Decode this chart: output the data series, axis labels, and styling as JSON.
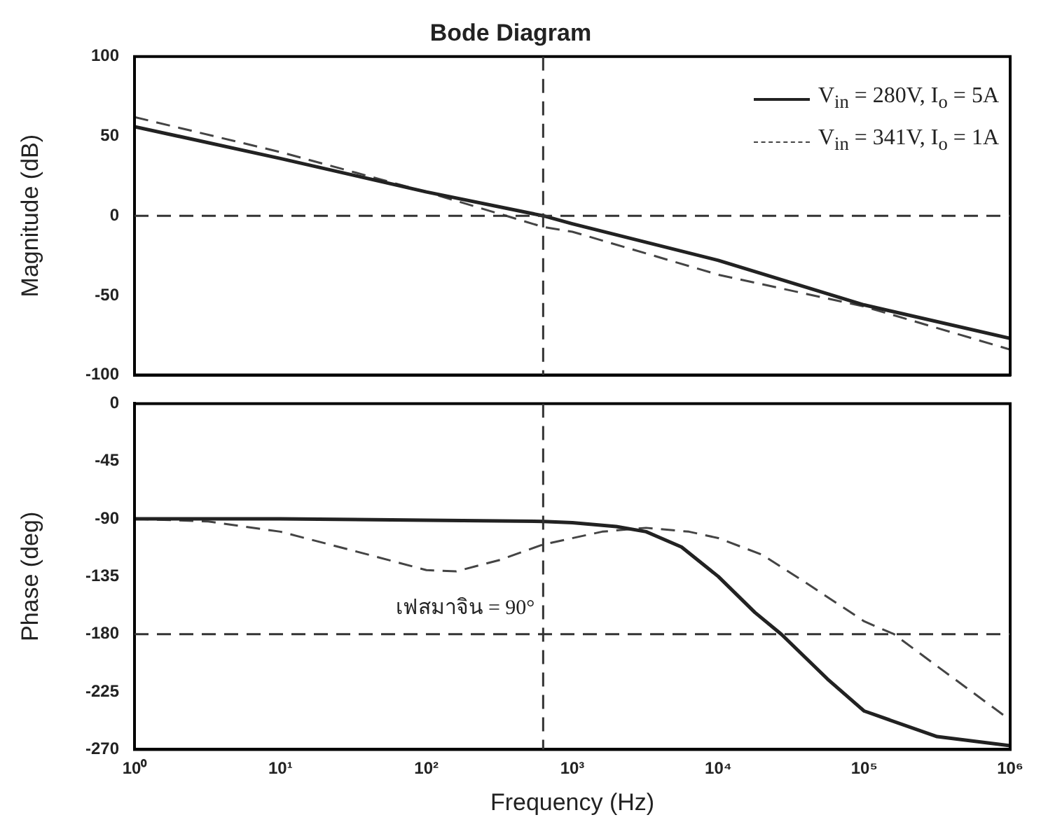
{
  "chart_data": [
    {
      "type": "line",
      "title": "Bode Diagram",
      "ylabel": "Magnitude (dB)",
      "log": "x",
      "grid": false,
      "legend": "top right",
      "tick_labels": "y",
      "marker": "none",
      "xlim": [
        1,
        1000000
      ],
      "ylim": [
        -100,
        100
      ],
      "yticks": [
        -100,
        -50,
        0,
        50,
        100
      ],
      "series": [
        {
          "name": "V$_{in}$ = 280V, I$_{o}$ = 5A",
          "color": "#222222",
          "line_style": "solid",
          "x": [
            1,
            10,
            100,
            631,
            1000,
            10000,
            100000,
            1000000
          ],
          "values": [
            56,
            36,
            15,
            0,
            -5,
            -28,
            -56,
            -77
          ]
        },
        {
          "name": "V$_{in}$ = 341V, I$_{o}$ = 1A",
          "color": "#444444",
          "line_style": "dashed",
          "x": [
            1,
            10,
            100,
            631,
            1000,
            10000,
            100000,
            1000000
          ],
          "values": [
            62,
            40,
            15,
            -7,
            -10,
            -37,
            -57,
            -84
          ]
        }
      ],
      "ref_lines": [
        {
          "axis": "y",
          "value": 0,
          "color": "#333333",
          "line_style": "dashed"
        },
        {
          "axis": "x",
          "value": 631,
          "color": "#333333",
          "line_style": "dashed"
        }
      ]
    },
    {
      "type": "line",
      "xlabel": "Frequency (Hz)",
      "ylabel": "Phase (deg)",
      "log": "x",
      "grid": false,
      "marker": "none",
      "xlim": [
        1,
        1000000
      ],
      "xticks": [
        {
          "value": 1,
          "label": "10⁰"
        },
        {
          "value": 10,
          "label": "10¹"
        },
        {
          "value": 100,
          "label": "10²"
        },
        {
          "value": 1000,
          "label": "10³"
        },
        {
          "value": 10000,
          "label": "10⁴"
        },
        {
          "value": 100000,
          "label": "10⁵"
        },
        {
          "value": 1000000,
          "label": "10⁶"
        }
      ],
      "ylim": [
        -270,
        0
      ],
      "yticks": [
        -270,
        -225,
        -180,
        -135,
        -90,
        -45,
        0
      ],
      "series": [
        {
          "color": "#222222",
          "line_style": "solid",
          "x": [
            1,
            10,
            100,
            631,
            1000,
            2000,
            3200,
            5600,
            10000,
            17800,
            27000,
            56000,
            100000,
            316000,
            1000000
          ],
          "values": [
            -90,
            -90,
            -91,
            -92,
            -93,
            -96,
            -100,
            -112,
            -135,
            -163,
            -180,
            -215,
            -240,
            -260,
            -267
          ]
        },
        {
          "color": "#444444",
          "line_style": "dashed",
          "x": [
            1,
            3.2,
            10,
            32,
            100,
            160,
            320,
            631,
            1600,
            3200,
            6300,
            10000,
            20000,
            40000,
            100000,
            160000,
            316000,
            1000000
          ],
          "values": [
            -90,
            -92,
            -100,
            -115,
            -130,
            -131,
            -122,
            -110,
            -100,
            -97,
            -100,
            -105,
            -118,
            -140,
            -170,
            -180,
            -205,
            -247
          ]
        }
      ],
      "ref_lines": [
        {
          "axis": "y",
          "value": -180,
          "color": "#333333",
          "line_style": "dashed"
        },
        {
          "axis": "x",
          "value": 631,
          "color": "#333333",
          "line_style": "dashed"
        }
      ],
      "annotations": [
        {
          "text": "เฟสมาจิน = 90°",
          "x": 631,
          "y": -160
        }
      ]
    }
  ]
}
